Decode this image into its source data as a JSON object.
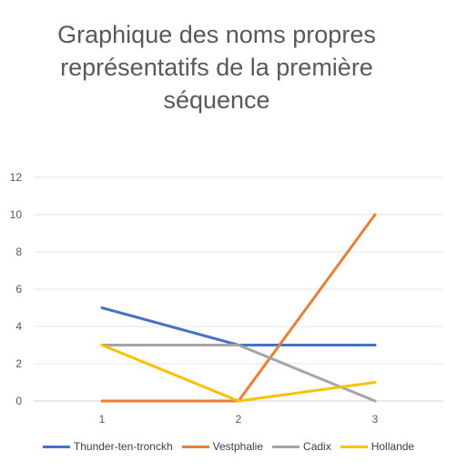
{
  "chart_data": {
    "type": "line",
    "title_lines": [
      "Graphique des noms propres",
      "représentatifs de la première",
      "séquence"
    ],
    "x": [
      "1",
      "2",
      "3"
    ],
    "ylim": [
      0,
      12
    ],
    "yticks": [
      "0",
      "2",
      "4",
      "6",
      "8",
      "10",
      "12"
    ],
    "grid": true,
    "legend_position": "bottom",
    "series": [
      {
        "name": "Thunder-ten-tronckh",
        "values": [
          5,
          3,
          3
        ],
        "color": "#4472C4"
      },
      {
        "name": "Vestphalie",
        "values": [
          0,
          0,
          10
        ],
        "color": "#ED7D31"
      },
      {
        "name": "Cadix",
        "values": [
          3,
          3,
          0
        ],
        "color": "#A5A5A5"
      },
      {
        "name": "Hollande",
        "values": [
          3,
          0,
          1
        ],
        "color": "#FFC000"
      }
    ]
  }
}
